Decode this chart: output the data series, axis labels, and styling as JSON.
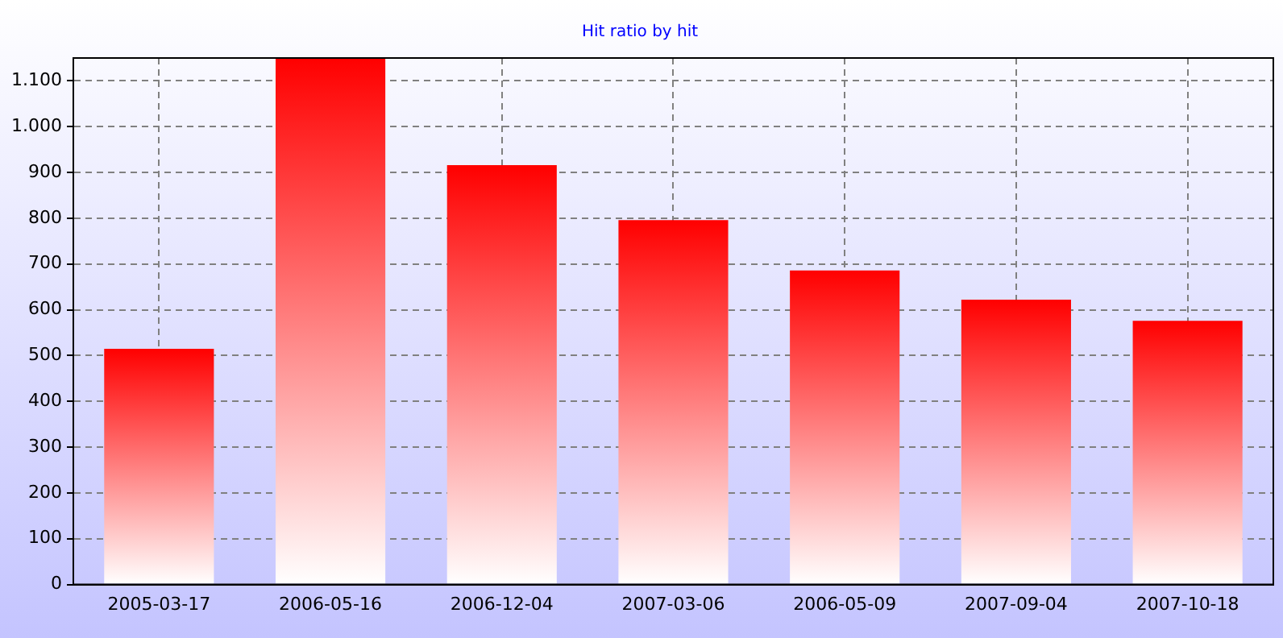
{
  "chart_data": {
    "type": "bar",
    "title": "Hit ratio by hit",
    "categories": [
      "2005-03-17",
      "2006-05-16",
      "2006-12-04",
      "2007-03-06",
      "2006-05-09",
      "2007-09-04",
      "2007-10-18"
    ],
    "values": [
      515,
      1150,
      916,
      796,
      686,
      622,
      576
    ],
    "color": "#ff0000",
    "ylim": [
      0,
      1150
    ],
    "yticks": [
      0,
      100,
      200,
      300,
      400,
      500,
      600,
      700,
      800,
      900,
      {
        "value": 1000,
        "label": "1.000"
      },
      {
        "value": 1100,
        "label": "1.100"
      }
    ],
    "grid": true,
    "legend": false
  }
}
